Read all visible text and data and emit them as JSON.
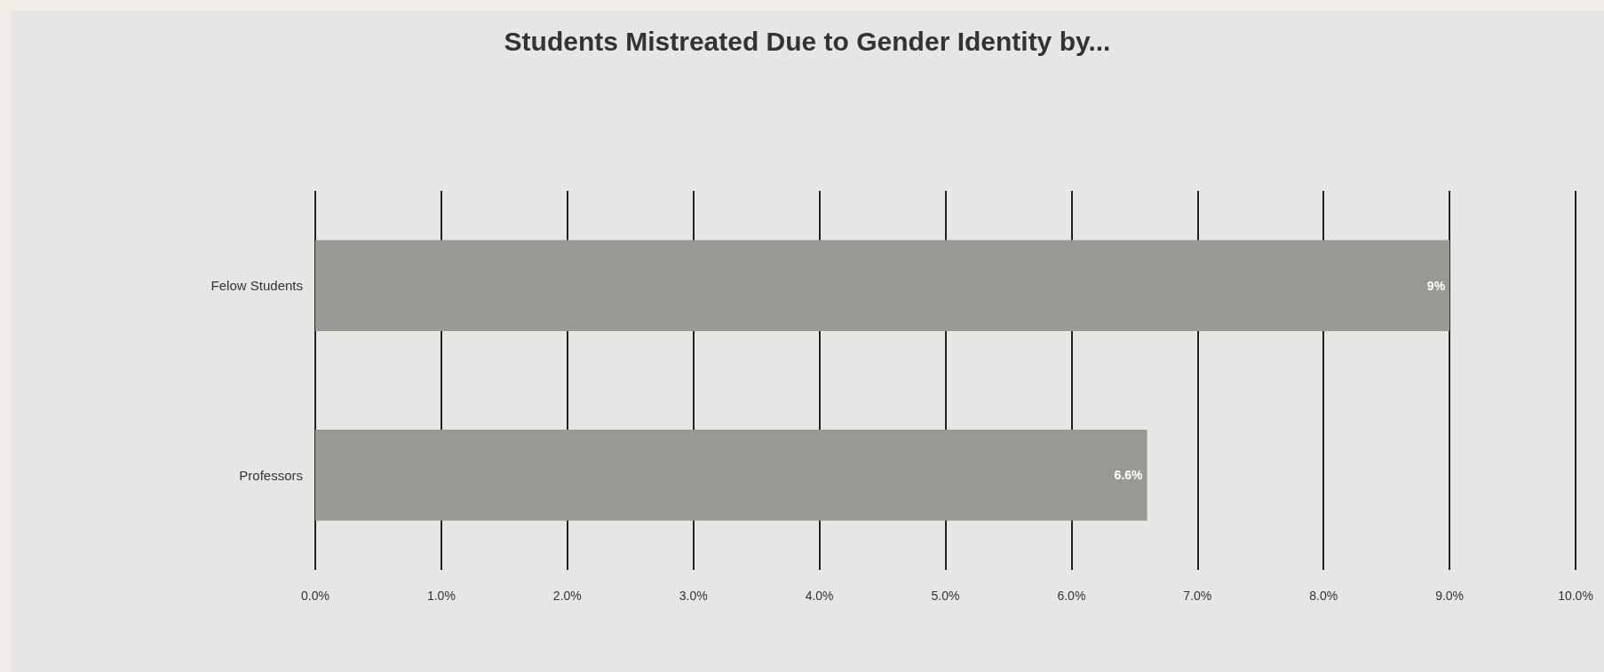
{
  "chart_data": {
    "type": "bar",
    "orientation": "horizontal",
    "title": "Students Mistreated Due to Gender Identity by...",
    "categories": [
      "Felow Students",
      "Professors"
    ],
    "values": [
      9,
      6.6
    ],
    "color": "#999994",
    "value_labels": [
      "9%",
      "6.6%"
    ],
    "xlim": [
      0,
      10
    ],
    "xticks": [
      {
        "value": 0,
        "label": "0.0%"
      },
      {
        "value": 1,
        "label": "1.0%"
      },
      {
        "value": 2,
        "label": "2.0%"
      },
      {
        "value": 3,
        "label": "3.0%"
      },
      {
        "value": 4,
        "label": "4.0%"
      },
      {
        "value": 5,
        "label": "5.0%"
      },
      {
        "value": 6,
        "label": "6.0%"
      },
      {
        "value": 7,
        "label": "7.0%"
      },
      {
        "value": 8,
        "label": "8.0%"
      },
      {
        "value": 9,
        "label": "9.0%"
      },
      {
        "value": 10,
        "label": "10.0%"
      }
    ],
    "grid": "x"
  }
}
